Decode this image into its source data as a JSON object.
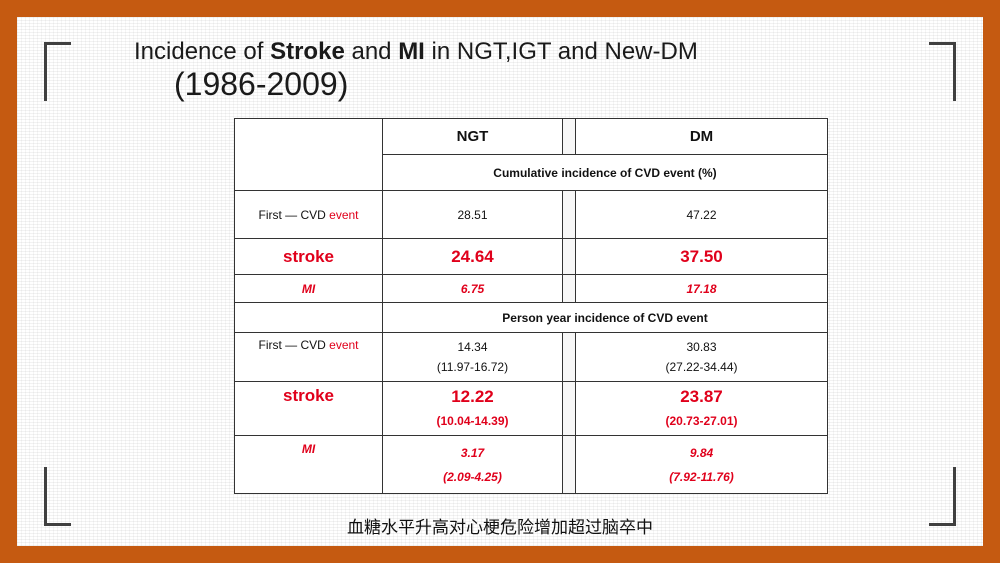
{
  "title": {
    "prefix": "Incidence of ",
    "stroke": "Stroke",
    "and": " and ",
    "mi": "MI",
    "suffix": " in NGT,IGT and New-DM",
    "years": "(1986-2009)"
  },
  "table": {
    "col_ngt": "NGT",
    "col_dm": "DM",
    "section1": "Cumulative  incidence of  CVD event (%)",
    "section2": "Person year incidence of CVD event",
    "first_prefix": "First — CVD ",
    "first_event": "event",
    "stroke_label": "stroke",
    "mi_label": "MI",
    "cum": {
      "first": {
        "ngt": "28.51",
        "dm": "47.22"
      },
      "stroke": {
        "ngt": "24.64",
        "dm": "37.50"
      },
      "mi": {
        "ngt": "6.75",
        "dm": "17.18"
      }
    },
    "py": {
      "first": {
        "ngt": "14.34",
        "ngt_ci": "(11.97-16.72)",
        "dm": "30.83",
        "dm_ci": "(27.22-34.44)"
      },
      "stroke": {
        "ngt": "12.22",
        "ngt_ci": "(10.04-14.39)",
        "dm": "23.87",
        "dm_ci": "(20.73-27.01)"
      },
      "mi": {
        "ngt": "3.17",
        "ngt_ci": "(2.09-4.25)",
        "dm": "9.84",
        "dm_ci": "(7.92-11.76)"
      }
    }
  },
  "caption": "血糖水平升高对心梗危险增加超过脑卒中",
  "colors": {
    "frame": "#c55a11",
    "accent_red": "#e0001b"
  }
}
